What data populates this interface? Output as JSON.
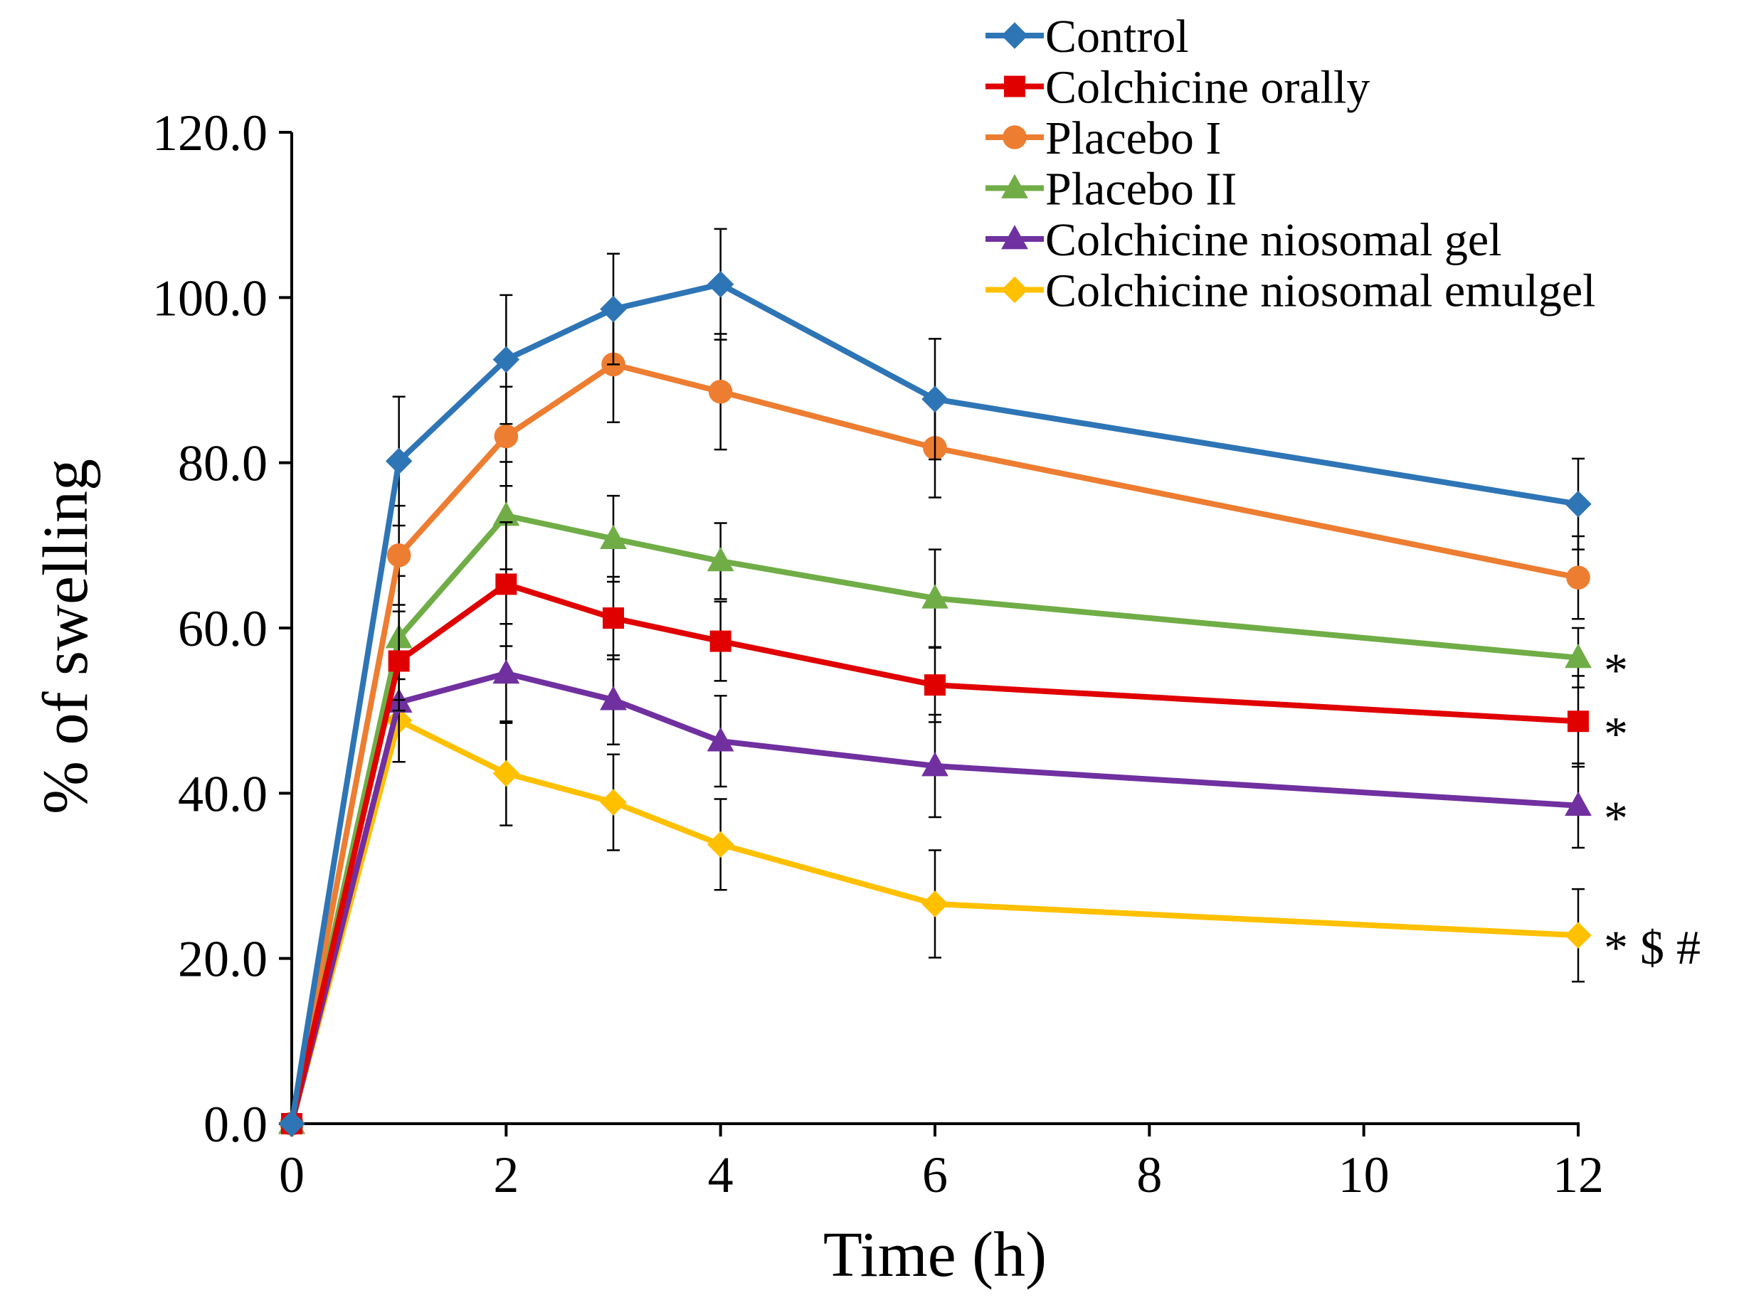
{
  "chart_data": {
    "type": "line",
    "title": "",
    "xlabel": "Time (h)",
    "ylabel": "% of swelling",
    "xlim": [
      0,
      12
    ],
    "ylim": [
      0,
      120
    ],
    "x_ticks": [
      0,
      2,
      4,
      6,
      8,
      10,
      12
    ],
    "x_tick_labels": [
      "0",
      "2",
      "4",
      "6",
      "8",
      "10",
      "12"
    ],
    "y_ticks": [
      0,
      20,
      40,
      60,
      80,
      100,
      120
    ],
    "y_tick_labels": [
      "0.0",
      "20.0",
      "40.0",
      "60.0",
      "80.0",
      "100.0",
      "120.0"
    ],
    "grid": false,
    "legend_position": "top-right",
    "x": [
      0,
      1,
      2,
      3,
      4,
      6,
      12
    ],
    "series": [
      {
        "name": "Control",
        "color": "#2E75B6",
        "marker": "diamond",
        "values": [
          0,
          80.2,
          92.5,
          98.6,
          101.6,
          87.7,
          75.0
        ],
        "errors": [
          0,
          7.8,
          7.8,
          6.7,
          6.7,
          7.3,
          5.5
        ],
        "annotation": ""
      },
      {
        "name": "Colchicine orally",
        "color": "#E00000",
        "marker": "square",
        "values": [
          0,
          56.0,
          65.3,
          61.2,
          58.4,
          53.1,
          48.7
        ],
        "errors": [
          0,
          6.0,
          7.5,
          5.0,
          4.8,
          4.5,
          5.5
        ],
        "annotation": "*"
      },
      {
        "name": "Placebo I",
        "color": "#ED7D31",
        "marker": "circle",
        "values": [
          0,
          68.8,
          83.2,
          91.9,
          88.6,
          81.8,
          66.1
        ],
        "errors": [
          0,
          6.0,
          6.0,
          7.0,
          7.0,
          6.0,
          5.0
        ],
        "annotation": ""
      },
      {
        "name": "Placebo II",
        "color": "#70AD47",
        "marker": "triangle",
        "values": [
          0,
          58.8,
          73.6,
          70.8,
          68.1,
          63.6,
          56.4
        ],
        "errors": [
          0,
          7.5,
          6.5,
          5.2,
          4.6,
          5.9,
          3.6
        ],
        "annotation": "*"
      },
      {
        "name": "Colchicine niosomal gel",
        "color": "#7030A0",
        "marker": "triangle",
        "values": [
          0,
          51.0,
          54.5,
          51.3,
          46.3,
          43.3,
          38.5
        ],
        "errors": [
          0,
          7.2,
          6.0,
          5.4,
          5.5,
          6.2,
          5.1
        ],
        "annotation": "*"
      },
      {
        "name": "Colchicine niosomal emulgel",
        "color": "#FFC000",
        "marker": "diamond",
        "values": [
          0,
          48.8,
          42.4,
          38.9,
          33.8,
          26.6,
          22.8
        ],
        "errors": [
          0,
          5.0,
          6.3,
          5.8,
          5.5,
          6.5,
          5.6
        ],
        "annotation": "* $ #"
      }
    ]
  }
}
